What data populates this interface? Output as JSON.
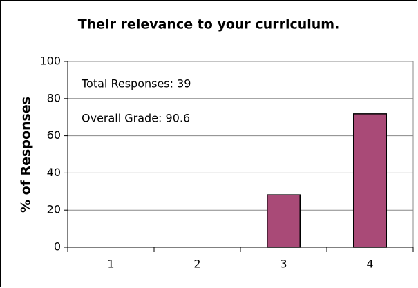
{
  "chart_data": {
    "type": "bar",
    "title": "Their relevance to your curriculum.",
    "y_label": "% of Responses",
    "annotations": [
      "Total Responses: 39",
      "Overall Grade: 90.6"
    ],
    "categories": [
      "1",
      "2",
      "3",
      "4"
    ],
    "values": [
      0,
      0,
      28.2,
      71.8
    ],
    "color": "#a94a77",
    "ylim": [
      0,
      100
    ],
    "yticks": [
      0,
      20,
      40,
      60,
      80,
      100
    ],
    "grid": true
  }
}
